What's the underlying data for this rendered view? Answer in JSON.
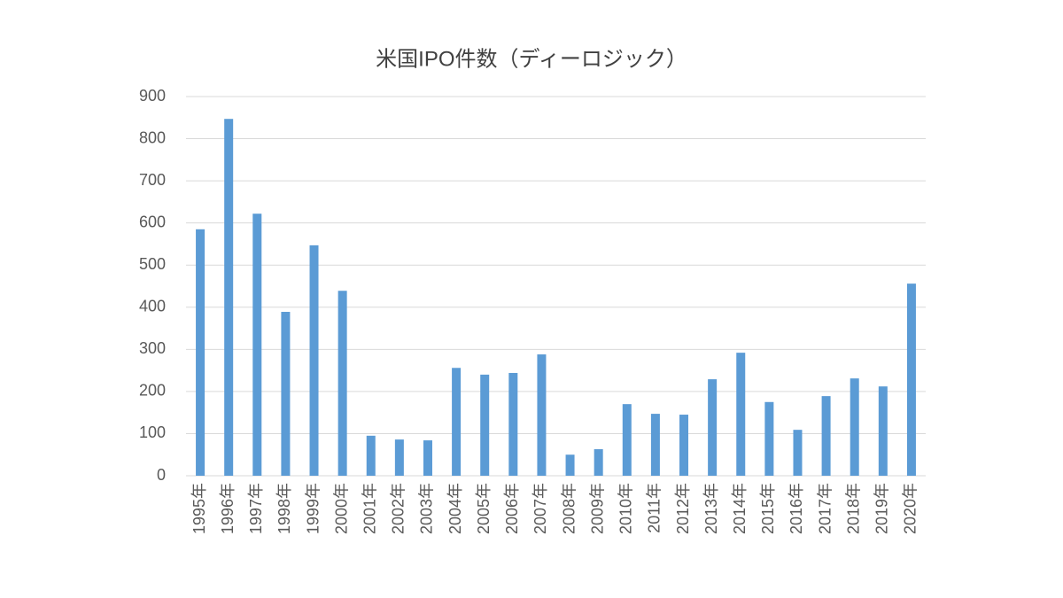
{
  "chart_data": {
    "type": "bar",
    "title": "米国IPO件数（ディーロジック）",
    "categories": [
      "1995年",
      "1996年",
      "1997年",
      "1998年",
      "1999年",
      "2000年",
      "2001年",
      "2002年",
      "2003年",
      "2004年",
      "2005年",
      "2006年",
      "2007年",
      "2008年",
      "2009年",
      "2010年",
      "2011年",
      "2012年",
      "2013年",
      "2014年",
      "2015年",
      "2016年",
      "2017年",
      "2018年",
      "2019年",
      "2020年"
    ],
    "values": [
      585,
      847,
      622,
      389,
      547,
      439,
      95,
      86,
      84,
      256,
      240,
      244,
      288,
      50,
      63,
      170,
      147,
      145,
      229,
      292,
      175,
      109,
      189,
      231,
      212,
      456
    ],
    "color": "#5b9bd5",
    "ylim": [
      0,
      900
    ],
    "yticks": [
      0,
      100,
      200,
      300,
      400,
      500,
      600,
      700,
      800,
      900
    ],
    "grid": true
  }
}
